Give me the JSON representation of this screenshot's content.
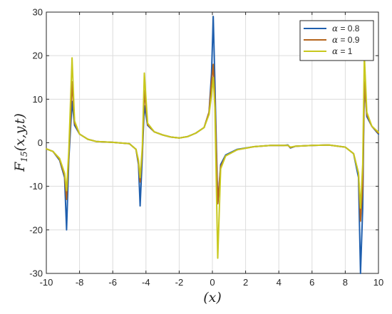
{
  "chart_data": {
    "type": "line",
    "title": "",
    "xlabel": "(x)",
    "ylabel": "F15(x,y,t)",
    "ylabel_main": "F",
    "ylabel_sub": "15",
    "ylabel_args": "(x,y,t)",
    "xlim": [
      -10,
      10
    ],
    "ylim": [
      -30,
      30
    ],
    "x_ticks": [
      -10,
      -8,
      -6,
      -4,
      -2,
      0,
      2,
      4,
      6,
      8,
      10
    ],
    "y_ticks": [
      -30,
      -20,
      -10,
      0,
      10,
      20,
      30
    ],
    "grid": true,
    "legend_position": "top-right",
    "series": [
      {
        "name": "α = 0.8",
        "legend_greek": "α",
        "legend_value": "= 0.8",
        "color": "#1f5fae",
        "points": [
          [
            -10,
            -1.4
          ],
          [
            -9.6,
            -2
          ],
          [
            -9.2,
            -4
          ],
          [
            -8.9,
            -8
          ],
          [
            -8.78,
            -20
          ],
          [
            -8.65,
            -4
          ],
          [
            -8.45,
            9.5
          ],
          [
            -8.3,
            4
          ],
          [
            -8,
            2
          ],
          [
            -7.5,
            0.8
          ],
          [
            -7,
            0.3
          ],
          [
            -6,
            0.1
          ],
          [
            -5,
            -0.2
          ],
          [
            -4.6,
            -1.5
          ],
          [
            -4.45,
            -5
          ],
          [
            -4.35,
            -14.5
          ],
          [
            -4.22,
            -3
          ],
          [
            -4.1,
            8.5
          ],
          [
            -3.9,
            4
          ],
          [
            -3.5,
            2.5
          ],
          [
            -3,
            1.8
          ],
          [
            -2.5,
            1.3
          ],
          [
            -2,
            1.1
          ],
          [
            -1.5,
            1.4
          ],
          [
            -1,
            2.2
          ],
          [
            -0.5,
            3.5
          ],
          [
            -0.2,
            7
          ],
          [
            -0.05,
            16
          ],
          [
            0.05,
            29
          ],
          [
            0.15,
            14
          ],
          [
            0.32,
            -14
          ],
          [
            0.5,
            -5
          ],
          [
            0.8,
            -2.8
          ],
          [
            1.5,
            -1.5
          ],
          [
            2.5,
            -0.9
          ],
          [
            3.5,
            -0.6
          ],
          [
            4.3,
            -0.6
          ],
          [
            4.55,
            -0.5
          ],
          [
            4.7,
            -1.2
          ],
          [
            5,
            -0.8
          ],
          [
            6,
            -0.6
          ],
          [
            7,
            -0.5
          ],
          [
            8,
            -1
          ],
          [
            8.5,
            -2.5
          ],
          [
            8.8,
            -8
          ],
          [
            8.92,
            -30
          ],
          [
            9.05,
            -15
          ],
          [
            9.15,
            14
          ],
          [
            9.3,
            6
          ],
          [
            9.6,
            3.8
          ],
          [
            10,
            2
          ]
        ]
      },
      {
        "name": "α = 0.9",
        "legend_greek": "α",
        "legend_value": "= 0.9",
        "color": "#b5651d",
        "points": [
          [
            -10,
            -1.4
          ],
          [
            -9.6,
            -2
          ],
          [
            -9.2,
            -3.8
          ],
          [
            -8.9,
            -7.5
          ],
          [
            -8.78,
            -13
          ],
          [
            -8.65,
            -3
          ],
          [
            -8.45,
            14
          ],
          [
            -8.3,
            4.5
          ],
          [
            -8,
            2
          ],
          [
            -7.5,
            0.8
          ],
          [
            -7,
            0.3
          ],
          [
            -6,
            0.1
          ],
          [
            -5,
            -0.2
          ],
          [
            -4.6,
            -1.5
          ],
          [
            -4.45,
            -4.5
          ],
          [
            -4.35,
            -9
          ],
          [
            -4.22,
            -2
          ],
          [
            -4.1,
            12
          ],
          [
            -3.9,
            4.2
          ],
          [
            -3.5,
            2.5
          ],
          [
            -3,
            1.8
          ],
          [
            -2.5,
            1.3
          ],
          [
            -2,
            1.1
          ],
          [
            -1.5,
            1.4
          ],
          [
            -1,
            2.2
          ],
          [
            -0.5,
            3.5
          ],
          [
            -0.2,
            7
          ],
          [
            -0.05,
            14
          ],
          [
            0.05,
            18
          ],
          [
            0.15,
            10
          ],
          [
            0.32,
            -14
          ],
          [
            0.5,
            -5.5
          ],
          [
            0.8,
            -3
          ],
          [
            1.5,
            -1.6
          ],
          [
            2.5,
            -0.9
          ],
          [
            3.5,
            -0.6
          ],
          [
            4.3,
            -0.6
          ],
          [
            4.55,
            -0.6
          ],
          [
            4.7,
            -1.1
          ],
          [
            5,
            -0.8
          ],
          [
            6,
            -0.6
          ],
          [
            7,
            -0.5
          ],
          [
            8,
            -1
          ],
          [
            8.5,
            -2.5
          ],
          [
            8.8,
            -7
          ],
          [
            8.92,
            -18
          ],
          [
            9.05,
            -10
          ],
          [
            9.15,
            14
          ],
          [
            9.3,
            6.5
          ],
          [
            9.6,
            3.8
          ],
          [
            10,
            2.2
          ]
        ]
      },
      {
        "name": "α = 1",
        "legend_greek": "α",
        "legend_value": "= 1",
        "color": "#c8c81e",
        "points": [
          [
            -10,
            -1.4
          ],
          [
            -9.6,
            -2
          ],
          [
            -9.2,
            -3.6
          ],
          [
            -8.9,
            -7
          ],
          [
            -8.78,
            -11
          ],
          [
            -8.65,
            -2
          ],
          [
            -8.45,
            19.5
          ],
          [
            -8.3,
            5
          ],
          [
            -8,
            2
          ],
          [
            -7.5,
            0.8
          ],
          [
            -7,
            0.3
          ],
          [
            -6,
            0.1
          ],
          [
            -5,
            -0.2
          ],
          [
            -4.6,
            -1.5
          ],
          [
            -4.45,
            -4
          ],
          [
            -4.35,
            -8
          ],
          [
            -4.22,
            -1
          ],
          [
            -4.1,
            16
          ],
          [
            -3.9,
            4.5
          ],
          [
            -3.5,
            2.5
          ],
          [
            -3,
            1.8
          ],
          [
            -2.5,
            1.3
          ],
          [
            -2,
            1.1
          ],
          [
            -1.5,
            1.4
          ],
          [
            -1,
            2.2
          ],
          [
            -0.5,
            3.5
          ],
          [
            -0.2,
            6.5
          ],
          [
            -0.05,
            11
          ],
          [
            0.05,
            15
          ],
          [
            0.15,
            8
          ],
          [
            0.32,
            -26.5
          ],
          [
            0.5,
            -6
          ],
          [
            0.8,
            -3
          ],
          [
            1.5,
            -1.6
          ],
          [
            2.5,
            -0.9
          ],
          [
            3.5,
            -0.6
          ],
          [
            4.3,
            -0.6
          ],
          [
            4.55,
            -0.6
          ],
          [
            4.7,
            -1
          ],
          [
            5,
            -0.8
          ],
          [
            6,
            -0.6
          ],
          [
            7,
            -0.5
          ],
          [
            8,
            -1
          ],
          [
            8.5,
            -2.5
          ],
          [
            8.8,
            -7
          ],
          [
            8.92,
            -15
          ],
          [
            9.05,
            -5
          ],
          [
            9.15,
            20
          ],
          [
            9.3,
            7
          ],
          [
            9.6,
            3.8
          ],
          [
            10,
            2.4
          ]
        ]
      }
    ]
  }
}
